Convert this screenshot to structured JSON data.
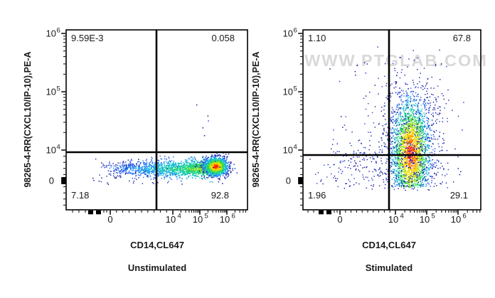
{
  "figure": {
    "watermark": "WWW.PTGLAB.COM",
    "background_color": "#ffffff",
    "text_color": "#1a1a1a"
  },
  "panels": [
    {
      "id": "unstimulated",
      "title": "Unstimulated",
      "x_axis_label": "CD14,CL647",
      "y_axis_label": "98265-4-RR(CXCL10/IP-10),PE-A",
      "quadrants": {
        "top_left": "9.59E-3",
        "top_right": "0.058",
        "bottom_left": "7.18",
        "bottom_right": "92.8"
      }
    },
    {
      "id": "stimulated",
      "title": "Stimulated",
      "x_axis_label": "CD14,CL647",
      "y_axis_label": "98265-4-RR(CXCL10/IP-10),PE-A",
      "quadrants": {
        "top_left": "1.10",
        "top_right": "67.8",
        "bottom_left": "1.96",
        "bottom_right": "29.1"
      }
    }
  ],
  "chart_data": [
    {
      "type": "scatter",
      "subtype": "flow-cytometry-pseudocolor-density",
      "title": "Unstimulated",
      "xlabel": "CD14,CL647",
      "ylabel": "98265-4-RR(CXCL10/IP-10),PE-A",
      "x_scale": "biexponential",
      "y_scale": "biexponential",
      "x_range": [
        -8000,
        3000000
      ],
      "y_range": [
        -9000,
        1600000
      ],
      "x_ticks": [
        {
          "label": "0",
          "value": 0
        },
        {
          "label": "10^4",
          "value": 10000
        },
        {
          "label": "10^5",
          "value": 100000
        },
        {
          "label": "10^6",
          "value": 1000000
        }
      ],
      "y_ticks": [
        {
          "label": "0",
          "value": 0
        },
        {
          "label": "10^4",
          "value": 10000
        },
        {
          "label": "10^5",
          "value": 100000
        },
        {
          "label": "10^6",
          "value": 1000000
        }
      ],
      "quadrant_gates": {
        "x_value": 7200,
        "y_value": 9300
      },
      "quadrant_stats": {
        "upper_left": "9.59E-3",
        "upper_right": "0.058",
        "lower_left": "7.18",
        "lower_right": "92.8"
      },
      "populations": [
        {
          "name": "cd14-smear-band",
          "shape": "horizontal-band",
          "x_min": -2000,
          "x_max": 330000,
          "y_center": 4000,
          "y_sd": 1400,
          "n": 1700,
          "density_colored": true
        },
        {
          "name": "cd14-high-dense-core",
          "shape": "blob",
          "x_center": 380000,
          "x_sd": 250000,
          "y_center": 4700,
          "y_sd": 1500,
          "n": 1400,
          "density_colored": true
        },
        {
          "name": "sparse-low-background",
          "shape": "uniform",
          "x_min": -3000,
          "x_max": 900000,
          "y_min": -1500,
          "y_max": 8000,
          "n": 45
        },
        {
          "name": "sparse-upper-dots",
          "shape": "uniform",
          "x_min": 60000,
          "x_max": 420000,
          "y_min": 12000,
          "y_max": 70000,
          "n": 5
        }
      ],
      "colormap": [
        "#16169e",
        "#1b3cd6",
        "#1e6ef0",
        "#1ba8e8",
        "#10c8c0",
        "#22d860",
        "#8ae020",
        "#f0e000",
        "#ff9000",
        "#ff2000"
      ]
    },
    {
      "type": "scatter",
      "subtype": "flow-cytometry-pseudocolor-density",
      "title": "Stimulated",
      "xlabel": "CD14,CL647",
      "ylabel": "98265-4-RR(CXCL10/IP-10),PE-A",
      "x_scale": "biexponential",
      "y_scale": "biexponential",
      "x_range": [
        -8000,
        3000000
      ],
      "y_range": [
        -9000,
        1600000
      ],
      "x_ticks": [
        {
          "label": "0",
          "value": 0
        },
        {
          "label": "10^4",
          "value": 10000
        },
        {
          "label": "10^5",
          "value": 100000
        },
        {
          "label": "10^6",
          "value": 1000000
        }
      ],
      "y_ticks": [
        {
          "label": "0",
          "value": 0
        },
        {
          "label": "10^4",
          "value": 10000
        },
        {
          "label": "10^5",
          "value": 100000
        },
        {
          "label": "10^6",
          "value": 1000000
        }
      ],
      "quadrant_gates": {
        "x_value": 8800,
        "y_value": 8400
      },
      "quadrant_stats": {
        "upper_left": "1.10",
        "upper_right": "67.8",
        "lower_left": "1.96",
        "lower_right": "29.1"
      },
      "populations": [
        {
          "name": "cxcl10-positive-cloud",
          "shape": "blob",
          "x_center": 30000,
          "x_sd": 32000,
          "y_center": 9000,
          "y_sd": 18000,
          "n": 2800,
          "density_colored": true,
          "y_floor": -2000
        },
        {
          "name": "cloud-fringe",
          "shape": "blob",
          "x_center": 30000,
          "x_sd": 90000,
          "y_center": 9000,
          "y_sd": 36000,
          "n": 750,
          "y_floor": -3000
        },
        {
          "name": "cd14-low-sparse",
          "shape": "blob",
          "x_center": 2500,
          "x_sd": 3200,
          "y_center": 5000,
          "y_sd": 5100,
          "n": 160,
          "y_floor": -3000
        },
        {
          "name": "sparse-background",
          "shape": "uniform",
          "x_min": -3000,
          "x_max": 1800000,
          "y_min": -1500,
          "y_max": 350000,
          "n": 40
        }
      ],
      "colormap": [
        "#16169e",
        "#1b3cd6",
        "#1e6ef0",
        "#1ba8e8",
        "#10c8c0",
        "#22d860",
        "#8ae020",
        "#f0e000",
        "#ff9000",
        "#ff2000"
      ]
    }
  ]
}
